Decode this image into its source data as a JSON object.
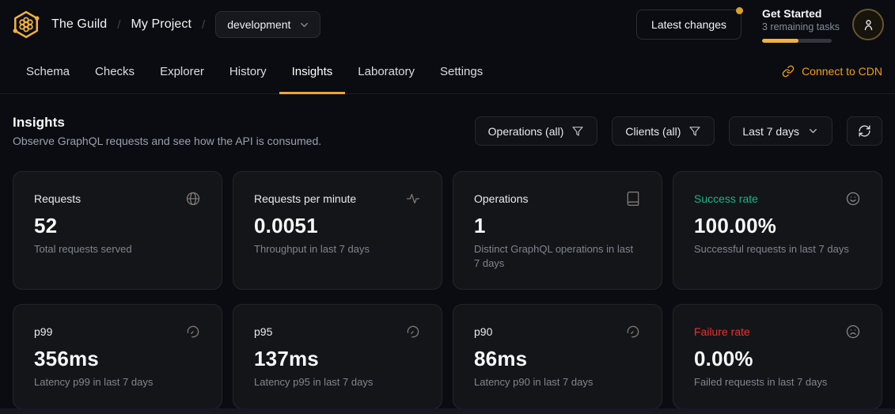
{
  "header": {
    "org": "The Guild",
    "project": "My Project",
    "separator": "/",
    "target": "development",
    "latest_changes": "Latest changes",
    "get_started": {
      "title": "Get Started",
      "subtitle": "3 remaining tasks",
      "progress_percent": 52
    }
  },
  "nav": {
    "tabs": [
      {
        "label": "Schema",
        "active": false
      },
      {
        "label": "Checks",
        "active": false
      },
      {
        "label": "Explorer",
        "active": false
      },
      {
        "label": "History",
        "active": false
      },
      {
        "label": "Insights",
        "active": true
      },
      {
        "label": "Laboratory",
        "active": false
      },
      {
        "label": "Settings",
        "active": false
      }
    ],
    "cdn_link": "Connect to CDN"
  },
  "insights": {
    "title": "Insights",
    "subtitle": "Observe GraphQL requests and see how the API is consumed.",
    "filters": {
      "operations": "Operations (all)",
      "clients": "Clients (all)",
      "period": "Last 7 days"
    }
  },
  "stats": [
    {
      "title": "Requests",
      "value": "52",
      "description": "Total requests served",
      "icon": "globe-icon"
    },
    {
      "title": "Requests per minute",
      "value": "0.0051",
      "description": "Throughput in last 7 days",
      "icon": "activity-icon"
    },
    {
      "title": "Operations",
      "value": "1",
      "description": "Distinct GraphQL operations in last 7 days",
      "icon": "book-icon"
    },
    {
      "title": "Success rate",
      "value": "100.00%",
      "description": "Successful requests in last 7 days",
      "icon": "smile-icon",
      "title_color": "#10b981"
    },
    {
      "title": "p99",
      "value": "356ms",
      "description": "Latency p99 in last 7 days",
      "icon": "gauge-icon"
    },
    {
      "title": "p95",
      "value": "137ms",
      "description": "Latency p95 in last 7 days",
      "icon": "gauge-icon"
    },
    {
      "title": "p90",
      "value": "86ms",
      "description": "Latency p90 in last 7 days",
      "icon": "gauge-icon"
    },
    {
      "title": "Failure rate",
      "value": "0.00%",
      "description": "Failed requests in last 7 days",
      "icon": "frown-icon",
      "title_color": "#ef2f2f"
    }
  ],
  "colors": {
    "accent_orange": "#f0a33c",
    "brand_yellow": "#f2b23e",
    "success_green": "#10b981",
    "danger_red": "#ef2f2f",
    "background": "#0a0c11",
    "card_background": "#141519"
  }
}
